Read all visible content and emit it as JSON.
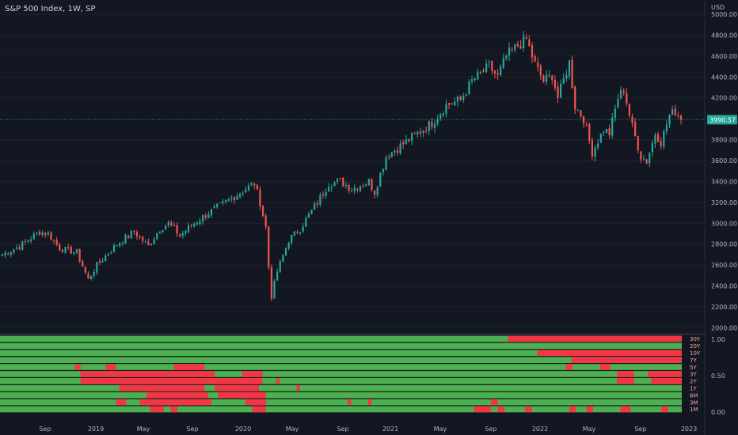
{
  "header": {
    "symbol_line": "S&P 500 Index, 1W, SP",
    "currency": "USD"
  },
  "colors": {
    "up": "#26a69a",
    "down": "#ef5350",
    "band_green": "#4caf50",
    "band_red": "#f23645",
    "background": "#131722",
    "last_price_label": "#26a69a"
  },
  "chart_data": [
    {
      "type": "candlestick",
      "title": "S&P 500 Index, 1W, SP",
      "y_unit": "USD",
      "ylim": [
        1950,
        5000
      ],
      "y_ticks": [
        "2000.00",
        "2200.00",
        "2400.00",
        "2600.00",
        "2800.00",
        "3000.00",
        "3200.00",
        "3400.00",
        "3600.00",
        "3800.00",
        "4000.00",
        "4200.00",
        "4400.00",
        "4600.00",
        "4800.00",
        "5000.00"
      ],
      "last_price": "3990.57",
      "x_ticks": [
        "Sep",
        "2019",
        "May",
        "Sep",
        "2020",
        "May",
        "Sep",
        "2021",
        "May",
        "Sep",
        "2022",
        "May",
        "Sep",
        "2023"
      ],
      "anchors": [
        {
          "week": 0,
          "close": 2700
        },
        {
          "week": 6,
          "close": 2780
        },
        {
          "week": 13,
          "close": 2920
        },
        {
          "week": 16,
          "close": 2900
        },
        {
          "week": 20,
          "close": 2760
        },
        {
          "week": 26,
          "close": 2720
        },
        {
          "week": 30,
          "close": 2460
        },
        {
          "week": 33,
          "close": 2600
        },
        {
          "week": 40,
          "close": 2800
        },
        {
          "week": 46,
          "close": 2920
        },
        {
          "week": 51,
          "close": 2780
        },
        {
          "week": 55,
          "close": 2950
        },
        {
          "week": 58,
          "close": 3000
        },
        {
          "week": 62,
          "close": 2880
        },
        {
          "week": 66,
          "close": 2980
        },
        {
          "week": 72,
          "close": 3100
        },
        {
          "week": 78,
          "close": 3200
        },
        {
          "week": 85,
          "close": 3330
        },
        {
          "week": 88,
          "close": 3380
        },
        {
          "week": 90,
          "close": 3200
        },
        {
          "week": 92,
          "close": 2960
        },
        {
          "week": 93,
          "close": 2580
        },
        {
          "week": 94,
          "close": 2300
        },
        {
          "week": 96,
          "close": 2540
        },
        {
          "week": 100,
          "close": 2840
        },
        {
          "week": 104,
          "close": 2950
        },
        {
          "week": 110,
          "close": 3200
        },
        {
          "week": 114,
          "close": 3380
        },
        {
          "week": 118,
          "close": 3400
        },
        {
          "week": 122,
          "close": 3330
        },
        {
          "week": 128,
          "close": 3400
        },
        {
          "week": 130,
          "close": 3300
        },
        {
          "week": 134,
          "close": 3640
        },
        {
          "week": 140,
          "close": 3760
        },
        {
          "week": 145,
          "close": 3860
        },
        {
          "week": 150,
          "close": 3960
        },
        {
          "week": 155,
          "close": 4130
        },
        {
          "week": 160,
          "close": 4180
        },
        {
          "week": 164,
          "close": 4360
        },
        {
          "week": 170,
          "close": 4500
        },
        {
          "week": 173,
          "close": 4400
        },
        {
          "week": 176,
          "close": 4600
        },
        {
          "week": 180,
          "close": 4700
        },
        {
          "week": 183,
          "close": 4760
        },
        {
          "week": 186,
          "close": 4520
        },
        {
          "week": 189,
          "close": 4360
        },
        {
          "week": 192,
          "close": 4420
        },
        {
          "week": 194,
          "close": 4200
        },
        {
          "week": 198,
          "close": 4540
        },
        {
          "week": 200,
          "close": 4120
        },
        {
          "week": 203,
          "close": 4000
        },
        {
          "week": 206,
          "close": 3680
        },
        {
          "week": 210,
          "close": 3900
        },
        {
          "week": 212,
          "close": 3860
        },
        {
          "week": 215,
          "close": 4200
        },
        {
          "week": 217,
          "close": 4280
        },
        {
          "week": 220,
          "close": 3920
        },
        {
          "week": 223,
          "close": 3640
        },
        {
          "week": 225,
          "close": 3590
        },
        {
          "week": 228,
          "close": 3860
        },
        {
          "week": 230,
          "close": 3780
        },
        {
          "week": 233,
          "close": 4030
        },
        {
          "week": 235,
          "close": 4070
        },
        {
          "week": 237,
          "close": 3990
        }
      ]
    },
    {
      "type": "heatmap",
      "y_ticks": [
        "1.00",
        "0.50",
        "0.00"
      ],
      "rows": [
        {
          "label": "30Y",
          "red": [
            [
              0.745,
              1.0
            ]
          ]
        },
        {
          "label": "20Y",
          "red": []
        },
        {
          "label": "10Y",
          "red": [
            [
              0.788,
              1.0
            ]
          ]
        },
        {
          "label": "7Y",
          "red": [
            [
              0.838,
              1.0
            ]
          ]
        },
        {
          "label": "5Y",
          "red": [
            [
              0.11,
              0.118
            ],
            [
              0.155,
              0.17
            ],
            [
              0.255,
              0.3
            ],
            [
              0.83,
              0.84
            ],
            [
              0.88,
              0.895
            ]
          ]
        },
        {
          "label": "3Y",
          "red": [
            [
              0.118,
              0.315
            ],
            [
              0.355,
              0.385
            ],
            [
              0.905,
              0.93
            ],
            [
              0.95,
              1.0
            ]
          ]
        },
        {
          "label": "2Y",
          "red": [
            [
              0.118,
              0.385
            ],
            [
              0.405,
              0.41
            ],
            [
              0.905,
              0.93
            ],
            [
              0.955,
              1.0
            ]
          ]
        },
        {
          "label": "1Y",
          "red": [
            [
              0.175,
              0.3
            ],
            [
              0.315,
              0.38
            ],
            [
              0.435,
              0.44
            ]
          ]
        },
        {
          "label": "6M",
          "red": [
            [
              0.215,
              0.305
            ],
            [
              0.32,
              0.39
            ]
          ]
        },
        {
          "label": "3M",
          "red": [
            [
              0.17,
              0.185
            ],
            [
              0.205,
              0.31
            ],
            [
              0.36,
              0.39
            ],
            [
              0.51,
              0.515
            ],
            [
              0.54,
              0.545
            ],
            [
              0.72,
              0.73
            ]
          ]
        },
        {
          "label": "1M",
          "red": [
            [
              0.22,
              0.24
            ],
            [
              0.25,
              0.26
            ],
            [
              0.37,
              0.39
            ],
            [
              0.695,
              0.72
            ],
            [
              0.73,
              0.74
            ],
            [
              0.77,
              0.78
            ],
            [
              0.835,
              0.845
            ],
            [
              0.86,
              0.87
            ],
            [
              0.91,
              0.925
            ],
            [
              0.97,
              0.98
            ]
          ]
        }
      ]
    }
  ]
}
